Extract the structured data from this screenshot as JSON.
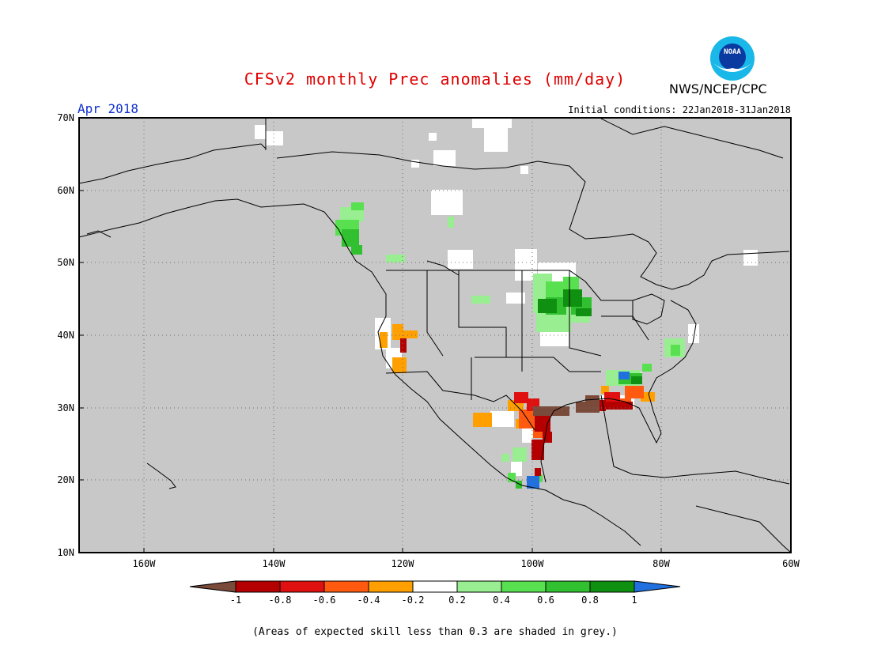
{
  "title": "CFSv2 monthly Prec anomalies (mm/day)",
  "agency": "NWS/NCEP/CPC",
  "logo_text": "NOAA",
  "period": "Apr 2018",
  "initial_conditions": "Initial conditions: 22Jan2018-31Jan2018",
  "footnote": "(Areas of expected skill less than 0.3 are shaded in grey.)",
  "map": {
    "lon_range": [
      -170,
      -60
    ],
    "lat_range": [
      10,
      70
    ],
    "background": "#c8c8c8",
    "lat_labels": [
      "70N",
      "60N",
      "50N",
      "40N",
      "30N",
      "20N",
      "10N"
    ],
    "lon_labels": [
      "160W",
      "140W",
      "120W",
      "100W",
      "80W",
      "60W"
    ]
  },
  "colorbar": {
    "labels": [
      "-1",
      "-0.8",
      "-0.6",
      "-0.4",
      "-0.2",
      "0.2",
      "0.4",
      "0.6",
      "0.8",
      "1"
    ],
    "colors": [
      "#7a4a3a",
      "#b40000",
      "#e01010",
      "#ff5a10",
      "#ffa000",
      "#ffffff",
      "#98ee90",
      "#58e050",
      "#30c030",
      "#109010",
      "#2070e0"
    ]
  }
}
